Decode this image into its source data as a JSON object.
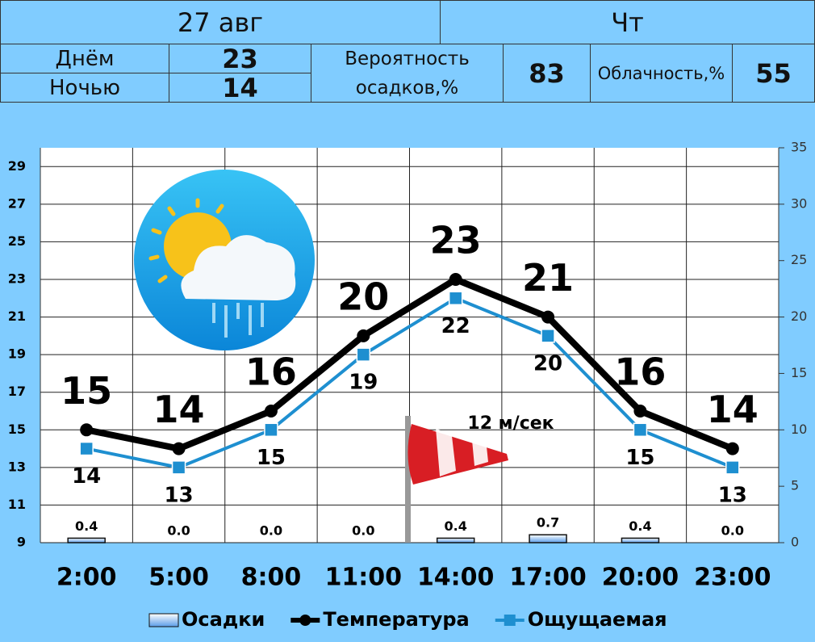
{
  "header": {
    "date": "27 авг",
    "weekday": "Чт",
    "day_label": "Днём",
    "day_value": 23,
    "night_label": "Ночью",
    "night_value": 14,
    "precip_prob_label_1": "Вероятность",
    "precip_prob_label_2": "осадков,%",
    "precip_prob_value": 83,
    "cloud_label": "Облачность,%",
    "cloud_value": 55
  },
  "chart_data": {
    "type": "line",
    "categories": [
      "2:00",
      "5:00",
      "8:00",
      "11:00",
      "14:00",
      "17:00",
      "20:00",
      "23:00"
    ],
    "series": [
      {
        "name": "Осадки",
        "type": "bar",
        "axis": "y2",
        "color": "#6fa8e8",
        "values": [
          0.4,
          0,
          0,
          0,
          0.4,
          0.7,
          0.4,
          0
        ],
        "value_labels": [
          "0.4",
          "0.0",
          "0.0",
          "0.0",
          "0.4",
          "0.7",
          "0.4",
          "0.0"
        ]
      },
      {
        "name": "Температура",
        "color": "#000000",
        "values": [
          15,
          14,
          16,
          20,
          23,
          21,
          16,
          14
        ]
      },
      {
        "name": "Ощущаемая",
        "color": "#1e8fd0",
        "values": [
          14,
          13,
          15,
          19,
          22,
          20,
          15,
          13
        ]
      }
    ],
    "ylim": [
      9,
      30
    ],
    "yticks": [
      9,
      11,
      13,
      15,
      17,
      19,
      21,
      23,
      25,
      27,
      29
    ],
    "y2lim": [
      0,
      35
    ],
    "y2ticks": [
      0,
      5,
      10,
      15,
      20,
      25,
      30,
      35
    ],
    "grid": true,
    "annotation": "12 м/сек"
  }
}
